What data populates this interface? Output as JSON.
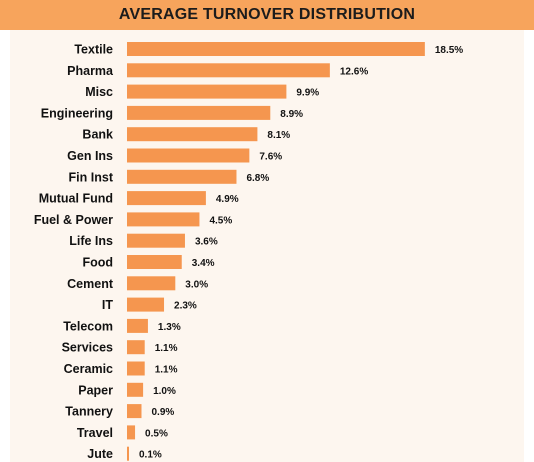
{
  "chart_data": {
    "type": "bar",
    "orientation": "horizontal",
    "title": "AVERAGE TURNOVER DISTRIBUTION",
    "categories": [
      "Textile",
      "Pharma",
      "Misc",
      "Engineering",
      "Bank",
      "Gen Ins",
      "Fin Inst",
      "Mutual Fund",
      "Fuel & Power",
      "Life Ins",
      "Food",
      "Cement",
      "IT",
      "Telecom",
      "Services",
      "Ceramic",
      "Paper",
      "Tannery",
      "Travel",
      "Jute"
    ],
    "values": [
      18.5,
      12.6,
      9.9,
      8.9,
      8.1,
      7.6,
      6.8,
      4.9,
      4.5,
      3.6,
      3.4,
      3.0,
      2.3,
      1.3,
      1.1,
      1.1,
      1.0,
      0.9,
      0.5,
      0.1
    ],
    "value_labels": [
      "18.5%",
      "12.6%",
      "9.9%",
      "8.9%",
      "8.1%",
      "7.6%",
      "6.8%",
      "4.9%",
      "4.5%",
      "3.6%",
      "3.4%",
      "3.0%",
      "2.3%",
      "1.3%",
      "1.1%",
      "1.1%",
      "1.0%",
      "0.9%",
      "0.5%",
      "0.1%"
    ],
    "xlabel": "",
    "ylabel": "",
    "grid": false,
    "legend": "none"
  },
  "colors": {
    "bar": "#f5964f",
    "title_band": "#f7a45c",
    "plot_background": "#fdf6ef"
  }
}
